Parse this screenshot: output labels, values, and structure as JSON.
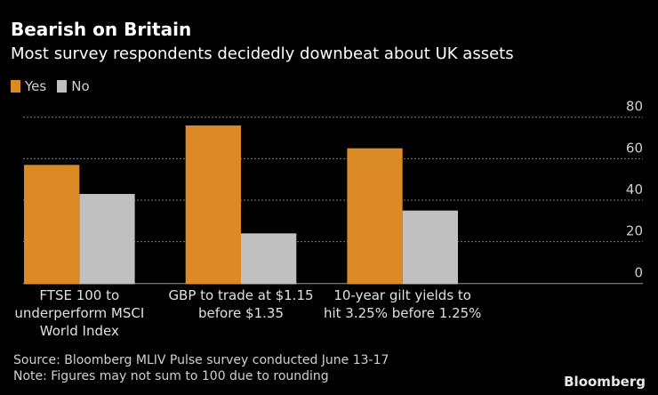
{
  "chart_data": {
    "type": "bar",
    "title": "Bearish on Britain",
    "subtitle": "Most survey respondents decidedly downbeat about UK assets",
    "categories": [
      "FTSE 100 to\nunderperform MSCI\nWorld Index",
      "GBP to trade at $1.15\nbefore $1.35",
      "10-year gilt yields to\nhit 3.25% before 1.25%"
    ],
    "series": [
      {
        "name": "Yes",
        "color": "#db8a26",
        "values": [
          57,
          76,
          65
        ]
      },
      {
        "name": "No",
        "color": "#c0c0c0",
        "values": [
          43,
          24,
          35
        ]
      }
    ],
    "xlabel": "",
    "ylabel": "",
    "ylim": [
      0,
      80
    ],
    "yticks": [
      0,
      20,
      40,
      60,
      80
    ],
    "y_axis_side": "right",
    "grid": true,
    "legend_position": "top-left",
    "source": "Source: Bloomberg MLIV Pulse survey conducted June 13-17",
    "note": "Note: Figures may not sum to 100 due to rounding"
  },
  "branding": {
    "logo": "Bloomberg"
  }
}
